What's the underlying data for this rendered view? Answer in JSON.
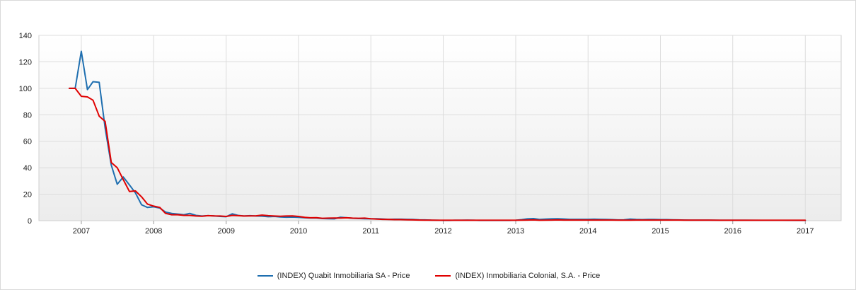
{
  "chart_data": {
    "type": "line",
    "title": "",
    "xlabel": "",
    "ylabel": "",
    "ylim": [
      0,
      140
    ],
    "xlim": [
      "2006-06-01",
      "2017-07-01"
    ],
    "yticks": [
      0,
      20,
      40,
      60,
      80,
      100,
      120,
      140
    ],
    "xtick_labels": [
      "2007",
      "2008",
      "2009",
      "2010",
      "2011",
      "2012",
      "2013",
      "2014",
      "2015",
      "2016",
      "2017"
    ],
    "xtick_dates": [
      "2007-01-01",
      "2008-01-01",
      "2009-01-01",
      "2010-01-01",
      "2011-01-01",
      "2012-01-01",
      "2013-01-01",
      "2014-01-01",
      "2015-01-01",
      "2016-01-01",
      "2017-01-01"
    ],
    "grid": true,
    "legend_position": "bottom-center",
    "series": [
      {
        "name": "(INDEX) Quabit Inmobiliaria SA - Price",
        "color": "#1f6fb0",
        "points": [
          [
            "2006-11-01",
            100
          ],
          [
            "2006-12-01",
            100
          ],
          [
            "2007-01-01",
            128
          ],
          [
            "2007-02-01",
            99
          ],
          [
            "2007-03-01",
            105
          ],
          [
            "2007-04-01",
            104.5
          ],
          [
            "2007-05-01",
            70
          ],
          [
            "2007-06-01",
            42
          ],
          [
            "2007-07-01",
            27.5
          ],
          [
            "2007-08-01",
            33
          ],
          [
            "2007-09-01",
            27
          ],
          [
            "2007-10-01",
            21
          ],
          [
            "2007-11-01",
            12
          ],
          [
            "2007-12-01",
            10
          ],
          [
            "2008-01-01",
            10.5
          ],
          [
            "2008-02-01",
            9.5
          ],
          [
            "2008-03-01",
            6.5
          ],
          [
            "2008-04-01",
            5.5
          ],
          [
            "2008-05-01",
            5
          ],
          [
            "2008-06-01",
            4.5
          ],
          [
            "2008-07-01",
            5.5
          ],
          [
            "2008-08-01",
            4
          ],
          [
            "2008-09-01",
            3.5
          ],
          [
            "2008-10-01",
            3.8
          ],
          [
            "2008-11-01",
            3.6
          ],
          [
            "2008-12-01",
            3.2
          ],
          [
            "2009-01-01",
            3
          ],
          [
            "2009-02-01",
            5.2
          ],
          [
            "2009-03-01",
            4
          ],
          [
            "2009-04-01",
            3.5
          ],
          [
            "2009-05-01",
            3.8
          ],
          [
            "2009-06-01",
            3.5
          ],
          [
            "2009-07-01",
            3.4
          ],
          [
            "2009-08-01",
            3
          ],
          [
            "2009-09-01",
            3.2
          ],
          [
            "2009-10-01",
            2.8
          ],
          [
            "2009-11-01",
            2.6
          ],
          [
            "2009-12-01",
            2.7
          ],
          [
            "2010-01-01",
            2.5
          ],
          [
            "2010-02-01",
            2.2
          ],
          [
            "2010-03-01",
            2
          ],
          [
            "2010-04-01",
            2
          ],
          [
            "2010-05-01",
            1.6
          ],
          [
            "2010-06-01",
            1.5
          ],
          [
            "2010-07-01",
            1.4
          ],
          [
            "2010-08-01",
            2.6
          ],
          [
            "2010-09-01",
            2.2
          ],
          [
            "2010-10-01",
            1.8
          ],
          [
            "2010-11-01",
            1.6
          ],
          [
            "2010-12-01",
            1.5
          ],
          [
            "2011-01-01",
            1.4
          ],
          [
            "2011-02-01",
            1.5
          ],
          [
            "2011-03-01",
            1.3
          ],
          [
            "2011-04-01",
            1
          ],
          [
            "2011-05-01",
            1.1
          ],
          [
            "2011-06-01",
            1.1
          ],
          [
            "2011-07-01",
            1
          ],
          [
            "2011-08-01",
            0.9
          ],
          [
            "2011-09-01",
            0.7
          ],
          [
            "2011-10-01",
            0.6
          ],
          [
            "2011-11-01",
            0.4
          ],
          [
            "2011-12-01",
            0.3
          ],
          [
            "2012-01-01",
            0.2
          ],
          [
            "2012-02-01",
            0.2
          ],
          [
            "2012-03-01",
            0.3
          ],
          [
            "2012-04-01",
            0.3
          ],
          [
            "2012-05-01",
            0.4
          ],
          [
            "2012-06-01",
            0.3
          ],
          [
            "2012-07-01",
            0.2
          ],
          [
            "2012-08-01",
            0.2
          ],
          [
            "2012-09-01",
            0.2
          ],
          [
            "2012-10-01",
            0.2
          ],
          [
            "2012-11-01",
            0.2
          ],
          [
            "2012-12-01",
            0.2
          ],
          [
            "2013-01-01",
            0.3
          ],
          [
            "2013-02-01",
            0.8
          ],
          [
            "2013-03-01",
            1.4
          ],
          [
            "2013-04-01",
            1.6
          ],
          [
            "2013-05-01",
            0.9
          ],
          [
            "2013-06-01",
            1.2
          ],
          [
            "2013-07-01",
            1.4
          ],
          [
            "2013-08-01",
            1.5
          ],
          [
            "2013-09-01",
            1.3
          ],
          [
            "2013-10-01",
            1
          ],
          [
            "2013-11-01",
            1
          ],
          [
            "2013-12-01",
            1
          ],
          [
            "2014-01-01",
            1
          ],
          [
            "2014-02-01",
            1.1
          ],
          [
            "2014-03-01",
            1
          ],
          [
            "2014-04-01",
            0.9
          ],
          [
            "2014-05-01",
            0.8
          ],
          [
            "2014-06-01",
            0.6
          ],
          [
            "2014-07-01",
            0.7
          ],
          [
            "2014-08-01",
            1.2
          ],
          [
            "2014-09-01",
            0.9
          ],
          [
            "2014-10-01",
            0.8
          ],
          [
            "2014-11-01",
            0.9
          ],
          [
            "2014-12-01",
            0.9
          ],
          [
            "2015-01-01",
            0.8
          ],
          [
            "2015-02-01",
            0.8
          ],
          [
            "2015-03-01",
            0.7
          ],
          [
            "2015-04-01",
            0.6
          ],
          [
            "2015-05-01",
            0.5
          ],
          [
            "2015-06-01",
            0.4
          ],
          [
            "2015-09-01",
            0.35
          ],
          [
            "2015-12-01",
            0.3
          ],
          [
            "2016-03-01",
            0.3
          ],
          [
            "2016-06-01",
            0.25
          ],
          [
            "2016-09-01",
            0.25
          ],
          [
            "2016-12-01",
            0.2
          ],
          [
            "2017-01-01",
            0.2
          ]
        ]
      },
      {
        "name": "(INDEX) Inmobiliaria Colonial, S.A. - Price",
        "color": "#e00000",
        "points": [
          [
            "2006-11-01",
            100
          ],
          [
            "2006-12-01",
            100
          ],
          [
            "2007-01-01",
            94
          ],
          [
            "2007-02-01",
            93.5
          ],
          [
            "2007-03-01",
            91
          ],
          [
            "2007-04-01",
            79
          ],
          [
            "2007-05-01",
            75
          ],
          [
            "2007-06-01",
            44
          ],
          [
            "2007-07-01",
            40
          ],
          [
            "2007-08-01",
            31
          ],
          [
            "2007-09-01",
            22
          ],
          [
            "2007-10-01",
            22.5
          ],
          [
            "2007-11-01",
            18
          ],
          [
            "2007-12-01",
            12.5
          ],
          [
            "2008-01-01",
            11
          ],
          [
            "2008-02-01",
            10
          ],
          [
            "2008-03-01",
            5.5
          ],
          [
            "2008-04-01",
            4.5
          ],
          [
            "2008-05-01",
            4.5
          ],
          [
            "2008-06-01",
            4
          ],
          [
            "2008-07-01",
            4
          ],
          [
            "2008-08-01",
            3.5
          ],
          [
            "2008-09-01",
            3.3
          ],
          [
            "2008-10-01",
            3.8
          ],
          [
            "2008-11-01",
            3.6
          ],
          [
            "2008-12-01",
            3.5
          ],
          [
            "2009-01-01",
            3.2
          ],
          [
            "2009-02-01",
            4
          ],
          [
            "2009-03-01",
            3.8
          ],
          [
            "2009-04-01",
            3.5
          ],
          [
            "2009-05-01",
            3.6
          ],
          [
            "2009-06-01",
            3.7
          ],
          [
            "2009-07-01",
            4.2
          ],
          [
            "2009-08-01",
            3.8
          ],
          [
            "2009-09-01",
            3.5
          ],
          [
            "2009-10-01",
            3.3
          ],
          [
            "2009-11-01",
            3.5
          ],
          [
            "2009-12-01",
            3.6
          ],
          [
            "2010-01-01",
            3.2
          ],
          [
            "2010-02-01",
            2.5
          ],
          [
            "2010-03-01",
            2.2
          ],
          [
            "2010-04-01",
            2.3
          ],
          [
            "2010-05-01",
            1.8
          ],
          [
            "2010-06-01",
            1.9
          ],
          [
            "2010-07-01",
            2
          ],
          [
            "2010-08-01",
            2
          ],
          [
            "2010-09-01",
            2.2
          ],
          [
            "2010-10-01",
            1.9
          ],
          [
            "2010-11-01",
            1.8
          ],
          [
            "2010-12-01",
            1.9
          ],
          [
            "2011-01-01",
            1.5
          ],
          [
            "2011-02-01",
            1.2
          ],
          [
            "2011-03-01",
            1
          ],
          [
            "2011-04-01",
            0.9
          ],
          [
            "2011-05-01",
            0.8
          ],
          [
            "2011-06-01",
            0.8
          ],
          [
            "2011-07-01",
            0.7
          ],
          [
            "2011-08-01",
            0.6
          ],
          [
            "2011-09-01",
            0.5
          ],
          [
            "2011-10-01",
            0.4
          ],
          [
            "2011-11-01",
            0.4
          ],
          [
            "2011-12-01",
            0.3
          ],
          [
            "2012-01-01",
            0.3
          ],
          [
            "2012-02-01",
            0.3
          ],
          [
            "2012-03-01",
            0.3
          ],
          [
            "2012-04-01",
            0.3
          ],
          [
            "2012-05-01",
            0.3
          ],
          [
            "2012-06-01",
            0.3
          ],
          [
            "2012-07-01",
            0.3
          ],
          [
            "2012-08-01",
            0.3
          ],
          [
            "2012-09-01",
            0.3
          ],
          [
            "2012-10-01",
            0.3
          ],
          [
            "2012-11-01",
            0.3
          ],
          [
            "2012-12-01",
            0.3
          ],
          [
            "2013-01-01",
            0.3
          ],
          [
            "2013-02-01",
            0.4
          ],
          [
            "2013-03-01",
            0.5
          ],
          [
            "2013-04-01",
            0.6
          ],
          [
            "2013-05-01",
            0.3
          ],
          [
            "2013-06-01",
            0.4
          ],
          [
            "2013-07-01",
            0.5
          ],
          [
            "2013-08-01",
            0.6
          ],
          [
            "2013-09-01",
            0.5
          ],
          [
            "2013-10-01",
            0.5
          ],
          [
            "2013-11-01",
            0.5
          ],
          [
            "2013-12-01",
            0.5
          ],
          [
            "2014-01-01",
            0.5
          ],
          [
            "2014-02-01",
            0.5
          ],
          [
            "2014-03-01",
            0.5
          ],
          [
            "2014-04-01",
            0.5
          ],
          [
            "2014-05-01",
            0.5
          ],
          [
            "2014-06-01",
            0.4
          ],
          [
            "2014-07-01",
            0.4
          ],
          [
            "2014-08-01",
            0.4
          ],
          [
            "2014-09-01",
            0.5
          ],
          [
            "2014-10-01",
            0.5
          ],
          [
            "2014-11-01",
            0.5
          ],
          [
            "2014-12-01",
            0.5
          ],
          [
            "2015-01-01",
            0.5
          ],
          [
            "2015-02-01",
            0.5
          ],
          [
            "2015-03-01",
            0.5
          ],
          [
            "2015-04-01",
            0.5
          ],
          [
            "2015-05-01",
            0.4
          ],
          [
            "2015-06-01",
            0.4
          ],
          [
            "2015-09-01",
            0.35
          ],
          [
            "2015-12-01",
            0.3
          ],
          [
            "2016-03-01",
            0.3
          ],
          [
            "2016-06-01",
            0.3
          ],
          [
            "2016-09-01",
            0.3
          ],
          [
            "2016-12-01",
            0.3
          ],
          [
            "2017-01-01",
            0.3
          ]
        ]
      }
    ]
  }
}
